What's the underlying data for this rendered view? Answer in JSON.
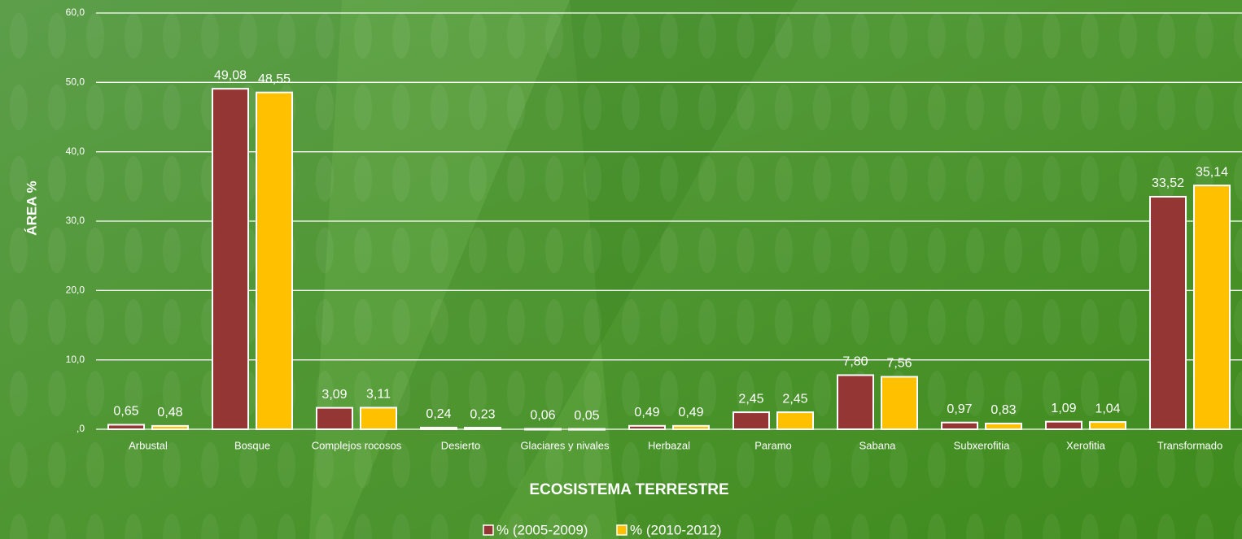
{
  "chart_data": {
    "type": "bar",
    "x_label": "ECOSISTEMA TERRESTRE",
    "y_label": "ÁREA %",
    "categories": [
      "Arbustal",
      "Bosque",
      "Complejos rocosos",
      "Desierto",
      "Glaciares y nivales",
      "Herbazal",
      "Paramo",
      "Sabana",
      "Subxerofitia",
      "Xerofitia",
      "Transformado"
    ],
    "series": [
      {
        "name": "% (2005-2009)",
        "color": "#943634",
        "values": [
          0.65,
          49.08,
          3.09,
          0.24,
          0.06,
          0.49,
          2.45,
          7.8,
          0.97,
          1.09,
          33.52
        ],
        "value_labels": [
          "0,65",
          "49,08",
          "3,09",
          "0,24",
          "0,06",
          "0,49",
          "2,45",
          "7,80",
          "0,97",
          "1,09",
          "33,52"
        ]
      },
      {
        "name": "% (2010-2012)",
        "color": "#ffc000",
        "values": [
          0.48,
          48.55,
          3.11,
          0.23,
          0.05,
          0.49,
          2.45,
          7.56,
          0.83,
          1.04,
          35.14
        ],
        "value_labels": [
          "0,48",
          "48,55",
          "3,11",
          "0,23",
          "0,05",
          "0,49",
          "2,45",
          "7,56",
          "0,83",
          "1,04",
          "35,14"
        ]
      }
    ],
    "ylim": [
      0,
      60
    ],
    "yticks": [
      {
        "value": 0,
        "label": ",0"
      },
      {
        "value": 10,
        "label": "10,0"
      },
      {
        "value": 20,
        "label": "20,0"
      },
      {
        "value": 30,
        "label": "30,0"
      },
      {
        "value": 40,
        "label": "40,0"
      },
      {
        "value": 50,
        "label": "50,0"
      },
      {
        "value": 60,
        "label": "60,0"
      }
    ],
    "grid": true,
    "legend": "bottom"
  }
}
